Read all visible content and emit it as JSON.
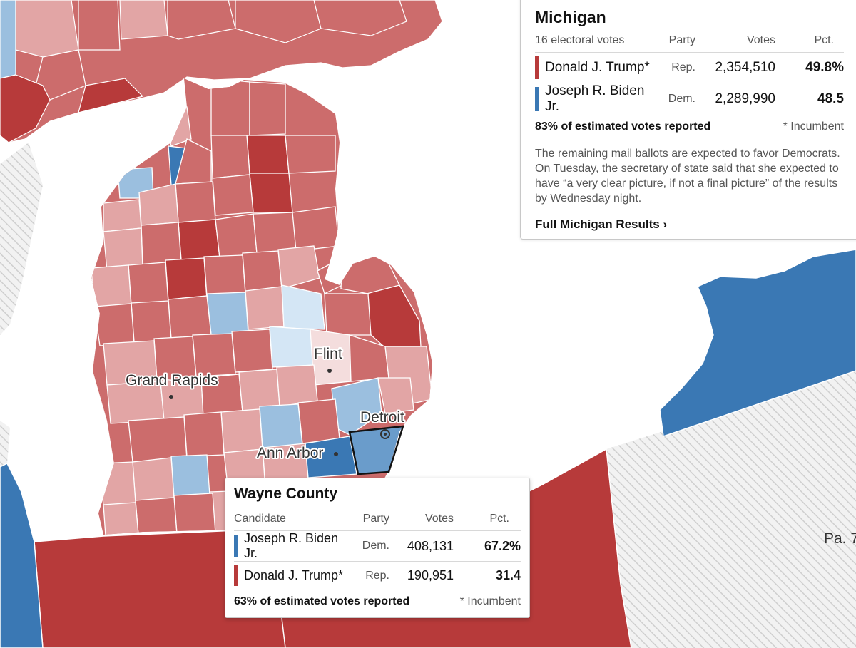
{
  "colors": {
    "strong_rep": "#b73a3a",
    "rep": "#cc6c6c",
    "lean_rep": "#e2a5a5",
    "tilt_rep": "#f4dddd",
    "strong_dem": "#3a78b4",
    "lean_dem": "#9bbfdf",
    "tilt_dem": "#d4e6f5",
    "border": "#ffffff",
    "water": "#ffffff",
    "hatch": "#e3e3e3"
  },
  "map": {
    "cities": [
      "Grand Rapids",
      "Flint",
      "Detroit",
      "Ann Arbor"
    ],
    "neighbor_label": "Pa. 7"
  },
  "state_panel": {
    "title": "Michigan",
    "col_first": "16 electoral votes",
    "col_party": "Party",
    "col_votes": "Votes",
    "col_pct": "Pct.",
    "candidates": [
      {
        "name": "Donald J. Trump*",
        "party": "Rep.",
        "votes": "2,354,510",
        "pct": "49.8%",
        "color": "#b73a3a"
      },
      {
        "name": "Joseph R. Biden Jr.",
        "party": "Dem.",
        "votes": "2,289,990",
        "pct": "48.5",
        "color": "#3a78b4"
      }
    ],
    "reported": "83% of estimated votes reported",
    "incumbent_note": "* Incumbent",
    "note": "The remaining mail ballots are expected to favor Democrats. On Tuesday, the secretary of state said that she expected to have “a very clear picture, if not a final picture” of the results by Wednesday night.",
    "link": "Full Michigan Results ›"
  },
  "county_panel": {
    "title": "Wayne County",
    "col_first": "Candidate",
    "col_party": "Party",
    "col_votes": "Votes",
    "col_pct": "Pct.",
    "candidates": [
      {
        "name": "Joseph R. Biden Jr.",
        "party": "Dem.",
        "votes": "408,131",
        "pct": "67.2%",
        "color": "#3a78b4"
      },
      {
        "name": "Donald J. Trump*",
        "party": "Rep.",
        "votes": "190,951",
        "pct": "31.4",
        "color": "#b73a3a"
      }
    ],
    "reported": "63% of estimated votes reported",
    "incumbent_note": "* Incumbent"
  }
}
